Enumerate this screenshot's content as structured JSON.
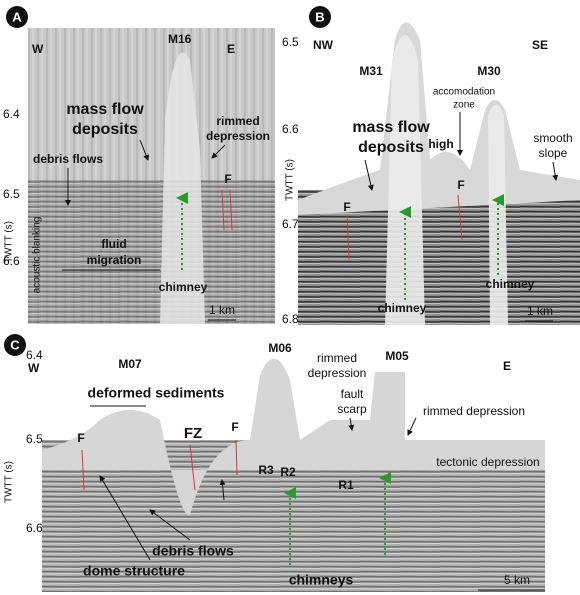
{
  "panels": [
    {
      "label": "A",
      "axis_title": "TWTT (s)",
      "ticks": [
        "6.4",
        "6.5",
        "6.6"
      ],
      "annotations": {
        "west": "W",
        "east": "E",
        "mound": "M16",
        "mass_flow": [
          "mass flow",
          "deposits"
        ],
        "rimmed": [
          "rimmed",
          "depression"
        ],
        "debris": "debris flows",
        "fault": "F",
        "fluid": [
          "fluid",
          "migration"
        ],
        "blanking": "acoustic blanking",
        "chimney": "chimney",
        "scale": "1 km"
      }
    },
    {
      "label": "B",
      "axis_title": "TWTT (s)",
      "ticks": [
        "6.5",
        "6.6",
        "6.7",
        "6.8"
      ],
      "annotations": {
        "west": "NW",
        "east": "SE",
        "mound_left": "M31",
        "mound_right": "M30",
        "accomodation": [
          "accomodation",
          "zone"
        ],
        "mass_flow": [
          "mass flow",
          "deposits"
        ],
        "high": "high",
        "smooth": [
          "smooth",
          "slope"
        ],
        "fault_left": "F",
        "fault_right": "F",
        "chimney_left": "chimney",
        "chimney_right": "chimney",
        "scale": "1 km"
      }
    },
    {
      "label": "C",
      "axis_title": "TWTT (s)",
      "ticks": [
        "6.4",
        "6.5",
        "6.6"
      ],
      "annotations": {
        "west": "W",
        "east": "E",
        "mound_m07": "M07",
        "mound_m06": "M06",
        "mound_m05": "M05",
        "deformed": "deformed sediments",
        "rimmed_left": [
          "rimmed",
          "depression"
        ],
        "fault_scarp": [
          "fault",
          "scarp"
        ],
        "rimmed_right": "rimmed depression",
        "tectonic": "tectonic depression",
        "fault_1": "F",
        "fault_zone": "FZ",
        "fault_2": "F",
        "r3": "R3",
        "r2": "R2",
        "r1": "R1",
        "debris": "debris flows",
        "dome": "dome structure",
        "chimneys": "chimneys",
        "scale": "5 km"
      }
    }
  ]
}
